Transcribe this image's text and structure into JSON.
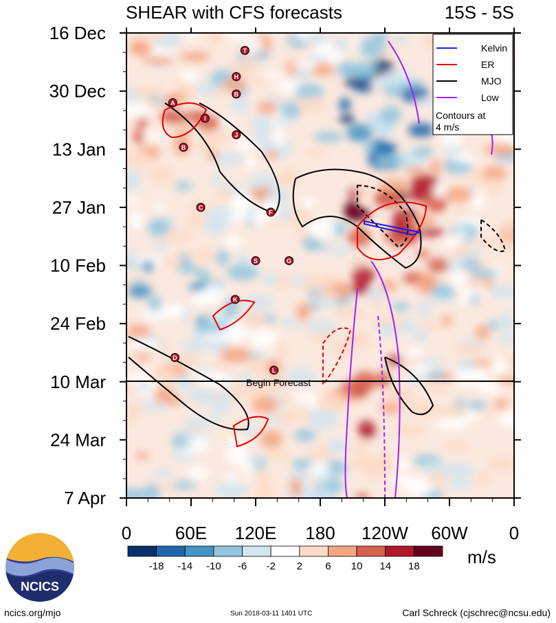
{
  "chart_data": {
    "type": "heatmap",
    "title": "SHEAR with CFS forecasts",
    "region_label": "15S - 5S",
    "x_axis": {
      "ticks": [
        "0",
        "60E",
        "120E",
        "180",
        "120W",
        "60W",
        "0"
      ],
      "range_deg_east": [
        0,
        360
      ]
    },
    "y_axis": {
      "ticks": [
        "16 Dec",
        "30 Dec",
        "13 Jan",
        "27 Jan",
        "10 Feb",
        "24 Feb",
        "10 Mar",
        "24 Mar",
        "7 Apr"
      ]
    },
    "forecast_line": {
      "date": "10 Mar",
      "label": "Begin Forecast"
    },
    "legend": {
      "placement": "top-right",
      "entries": [
        {
          "name": "Kelvin",
          "color": "#1a1ae6"
        },
        {
          "name": "ER",
          "color": "#e60000"
        },
        {
          "name": "MJO",
          "color": "#000000"
        },
        {
          "name": "Low",
          "color": "#a020f0"
        }
      ],
      "note_line1": "Contours at",
      "note_line2": "4 m/s"
    },
    "colorbar": {
      "unit": "m/s",
      "levels": [
        "-18",
        "-14",
        "-10",
        "-6",
        "-2",
        "2",
        "6",
        "10",
        "14",
        "18"
      ],
      "colors": [
        "#08306b",
        "#2166ac",
        "#4393c3",
        "#92c5de",
        "#d1e5f0",
        "#ffffff",
        "#fddbc7",
        "#f4a582",
        "#d6604d",
        "#b2182b",
        "#67001f"
      ]
    },
    "storms": [
      {
        "id": "T",
        "lon": 110,
        "date_idx": 1.8
      },
      {
        "id": "H",
        "lon": 102,
        "date_idx": 4.5
      },
      {
        "id": "B",
        "lon": 102,
        "date_idx": 6.3
      },
      {
        "id": "A",
        "lon": 43,
        "date_idx": 7.2
      },
      {
        "id": "I",
        "lon": 73,
        "date_idx": 8.8
      },
      {
        "id": "J",
        "lon": 102,
        "date_idx": 10.5
      },
      {
        "id": "B",
        "lon": 53,
        "date_idx": 11.8
      },
      {
        "id": "C",
        "lon": 69,
        "date_idx": 18.0
      },
      {
        "id": "F",
        "lon": 134,
        "date_idx": 18.5
      },
      {
        "id": "S",
        "lon": 120,
        "date_idx": 23.5
      },
      {
        "id": "G",
        "lon": 151,
        "date_idx": 23.5
      },
      {
        "id": "K",
        "lon": 101,
        "date_idx": 27.5
      },
      {
        "id": "D",
        "lon": 45,
        "date_idx": 33.5
      },
      {
        "id": "L",
        "lon": 137,
        "date_idx": 34.8
      }
    ]
  },
  "footer": {
    "site": "ncics.org/mjo",
    "timestamp": "Sun 2018-03-11 1401 UTC",
    "author": "Carl Schreck (cjschrec@ncsu.edu)"
  },
  "logo": {
    "text": "NCICS"
  }
}
